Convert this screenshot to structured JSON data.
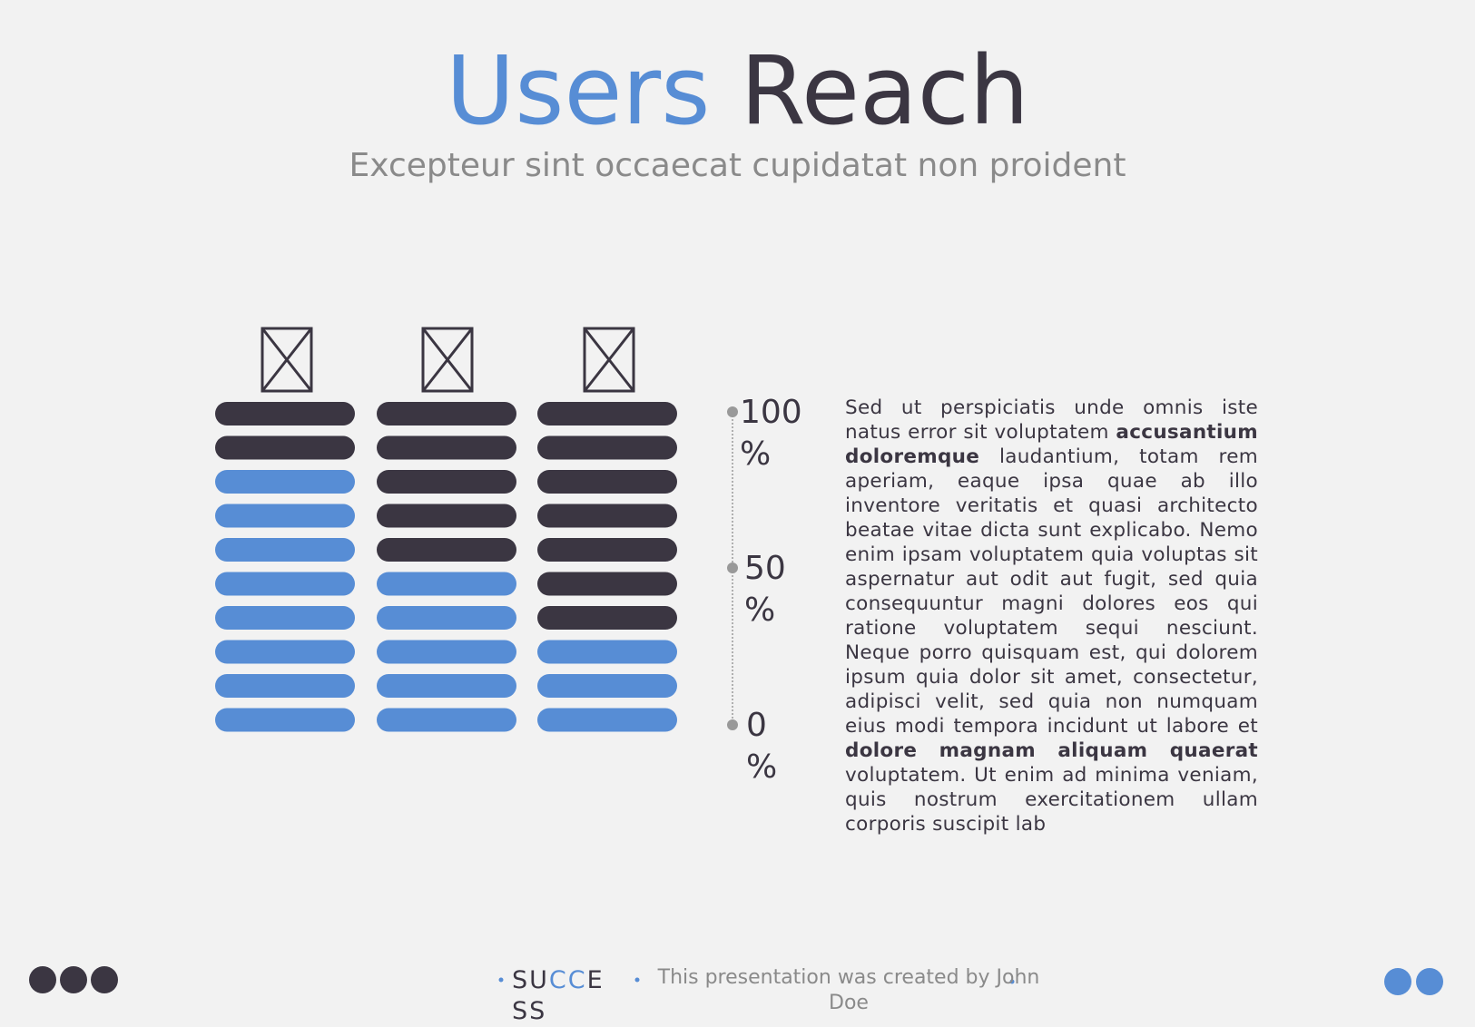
{
  "header": {
    "title_accent": "Users",
    "title_rest": "Reach",
    "subtitle": "Excepteur sint occaecat cupidatat non proident"
  },
  "columns": {
    "segments": 10,
    "values": [
      8,
      5,
      3
    ],
    "fill_color": "#578dd5",
    "rest_color": "#3b3642"
  },
  "scale": {
    "labels": [
      "100 %",
      "50 %",
      "0 %"
    ]
  },
  "paragraph": [
    {
      "text": "Sed ut perspiciatis unde omnis iste natus error sit voluptatem ",
      "bold": false
    },
    {
      "text": "accusantium doloremque",
      "bold": true
    },
    {
      "text": " laudantium, totam rem aperiam, eaque ipsa quae ab illo inventore veritatis et quasi architecto beatae vitae dicta sunt explicabo. Nemo enim ipsam voluptatem quia voluptas sit aspernatur aut odit aut fugit, sed quia consequuntur magni dolores eos qui ratione voluptatem sequi nesciunt. Neque porro quisquam est, qui dolorem ipsum quia dolor sit amet, consectetur, adipisci velit, sed quia non numquam eius modi tempora incidunt ut labore et ",
      "bold": false
    },
    {
      "text": "dolore magnam aliquam quaerat",
      "bold": true
    },
    {
      "text": " voluptatem. Ut enim ad minima veniam, quis nostrum exercitationem ullam corporis suscipit lab",
      "bold": false
    }
  ],
  "footer": {
    "logo": [
      "SU",
      "CC",
      "E SS"
    ],
    "credit": "This presentation was created by John Doe"
  }
}
